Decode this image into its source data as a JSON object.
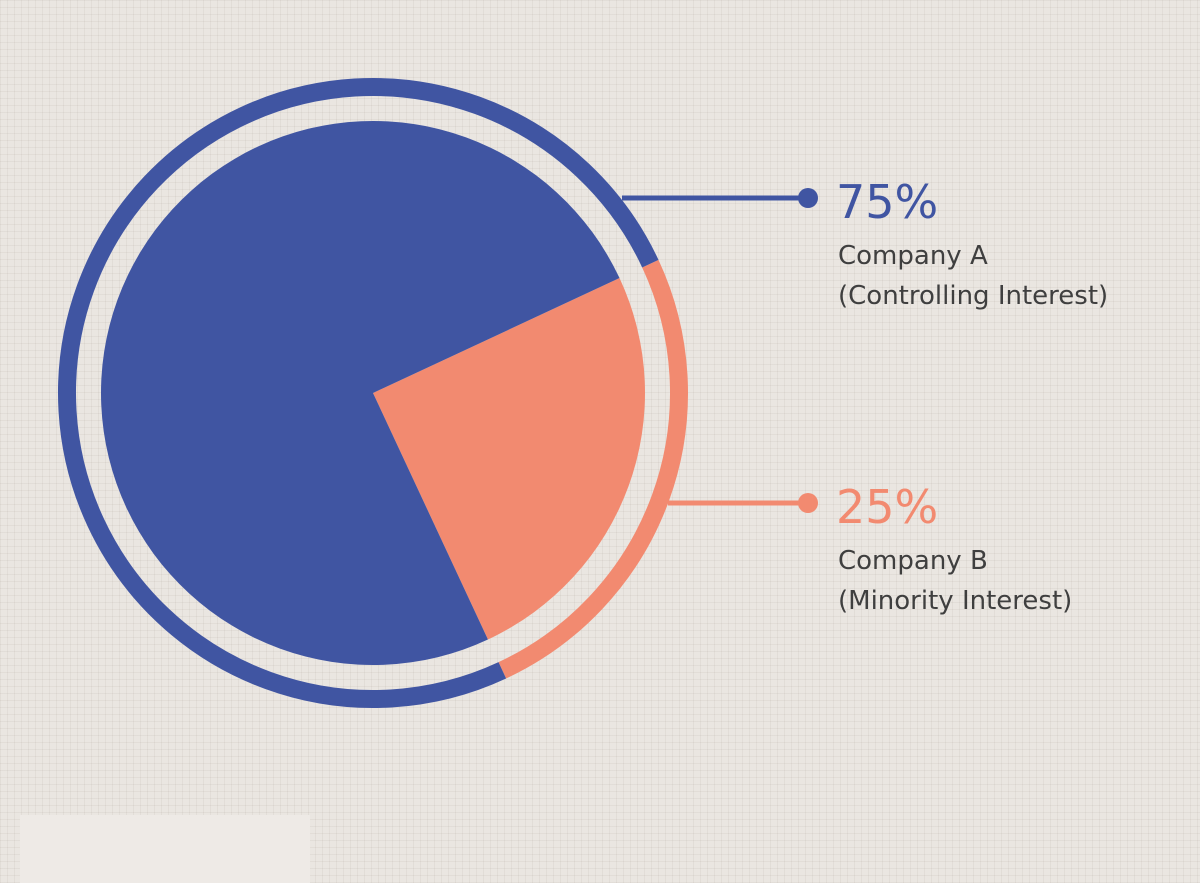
{
  "chart_data": {
    "type": "pie",
    "title": "",
    "slices": [
      {
        "name": "Company A",
        "detail": "(Controlling Interest)",
        "value": 75,
        "label": "75%",
        "color": "#4055a2"
      },
      {
        "name": "Company B",
        "detail": "(Minority Interest)",
        "value": 25,
        "label": "25%",
        "color": "#f28a70"
      }
    ],
    "background_color": "#eae6e1",
    "text_color": "#3f3f3f"
  }
}
